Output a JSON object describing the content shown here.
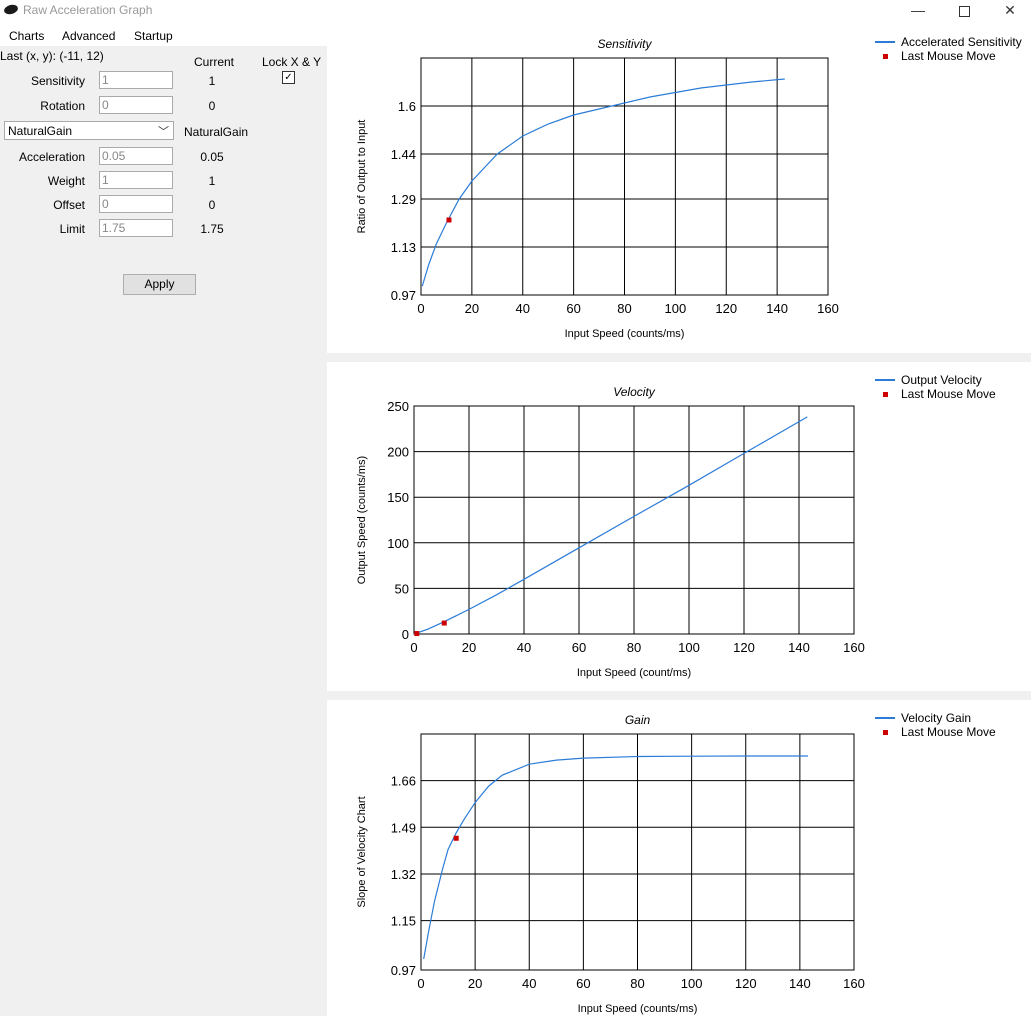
{
  "window": {
    "title": "Raw Acceleration Graph",
    "minimize_glyph": "—",
    "close_glyph": "✕"
  },
  "menu": [
    "Charts",
    "Advanced",
    "Startup"
  ],
  "panel": {
    "last_xy": "Last (x, y): (-11, 12)",
    "current_header": "Current",
    "lock_label": "Lock X & Y",
    "lock_checked": true,
    "sensitivity": {
      "label": "Sensitivity",
      "value": "1",
      "current": "1"
    },
    "rotation": {
      "label": "Rotation",
      "value": "0",
      "current": "0"
    },
    "mode": {
      "selected": "NaturalGain",
      "current": "NaturalGain"
    },
    "acceleration": {
      "label": "Acceleration",
      "value": "0.05",
      "current": "0.05"
    },
    "weight": {
      "label": "Weight",
      "value": "1",
      "current": "1"
    },
    "offset": {
      "label": "Offset",
      "value": "0",
      "current": "0"
    },
    "limit": {
      "label": "Limit",
      "value": "1.75",
      "current": "1.75"
    },
    "apply_label": "Apply"
  },
  "colors": {
    "curve": "#2b7cd8",
    "point": "#cc0000",
    "panel_bg": "#f0f0f0"
  },
  "chart_data": [
    {
      "type": "line",
      "title": "Sensitivity",
      "xlabel": "Input Speed (counts/ms)",
      "ylabel": "Ratio of Output to Input",
      "xlim": [
        0,
        160
      ],
      "ylim": [
        0.97,
        1.76
      ],
      "xticks": [
        "0",
        "20",
        "40",
        "60",
        "80",
        "100",
        "120",
        "140",
        "160"
      ],
      "yticks": [
        "0.97",
        "1.13",
        "1.29",
        "1.44",
        "1.6"
      ],
      "ytick_values": [
        0.97,
        1.13,
        1.29,
        1.44,
        1.6
      ],
      "grid": true,
      "legend_position": "top-right",
      "series": [
        {
          "name": "Accelerated Sensitivity",
          "x": [
            0.5,
            3,
            6,
            10,
            15,
            20,
            30,
            40,
            50,
            60,
            70,
            80,
            90,
            100,
            110,
            120,
            130,
            143
          ],
          "y": [
            1.0,
            1.07,
            1.14,
            1.21,
            1.29,
            1.35,
            1.44,
            1.5,
            1.54,
            1.57,
            1.59,
            1.61,
            1.63,
            1.645,
            1.66,
            1.67,
            1.68,
            1.69
          ]
        },
        {
          "name": "Last Mouse Move",
          "x": [
            11
          ],
          "y": [
            1.22
          ]
        }
      ]
    },
    {
      "type": "line",
      "title": "Velocity",
      "xlabel": "Input Speed (count/ms)",
      "ylabel": "Output Speed (counts/ms)",
      "xlim": [
        0,
        160
      ],
      "ylim": [
        0,
        250
      ],
      "xticks": [
        "0",
        "20",
        "40",
        "60",
        "80",
        "100",
        "120",
        "140",
        "160"
      ],
      "yticks": [
        "0",
        "50",
        "100",
        "150",
        "200",
        "250"
      ],
      "ytick_values": [
        0,
        50,
        100,
        150,
        200,
        250
      ],
      "grid": true,
      "legend_position": "top-right",
      "series": [
        {
          "name": "Output Velocity",
          "x": [
            0,
            5,
            10,
            15,
            20,
            30,
            40,
            60,
            80,
            100,
            120,
            143
          ],
          "y": [
            0,
            5.3,
            12.2,
            19.5,
            27,
            43,
            60,
            94.5,
            129,
            163,
            198,
            238
          ]
        },
        {
          "name": "Last Mouse Move",
          "x": [
            1,
            11
          ],
          "y": [
            0.5,
            12
          ]
        }
      ]
    },
    {
      "type": "line",
      "title": "Gain",
      "xlabel": "Input Speed (counts/ms)",
      "ylabel": "Slope of Velocity Chart",
      "xlim": [
        0,
        160
      ],
      "ylim": [
        0.97,
        1.83
      ],
      "xticks": [
        "0",
        "20",
        "40",
        "60",
        "80",
        "100",
        "120",
        "140",
        "160"
      ],
      "yticks": [
        "0.97",
        "1.15",
        "1.32",
        "1.49",
        "1.66"
      ],
      "ytick_values": [
        0.97,
        1.15,
        1.32,
        1.49,
        1.66
      ],
      "grid": true,
      "legend_position": "top-right",
      "series": [
        {
          "name": "Velocity Gain",
          "x": [
            1,
            3,
            5,
            8,
            10,
            13,
            16,
            20,
            25,
            30,
            40,
            50,
            60,
            80,
            100,
            120,
            143
          ],
          "y": [
            1.01,
            1.12,
            1.22,
            1.34,
            1.41,
            1.47,
            1.52,
            1.58,
            1.64,
            1.68,
            1.72,
            1.735,
            1.742,
            1.748,
            1.749,
            1.75,
            1.75
          ]
        },
        {
          "name": "Last Mouse Move",
          "x": [
            13
          ],
          "y": [
            1.45
          ]
        }
      ]
    }
  ]
}
